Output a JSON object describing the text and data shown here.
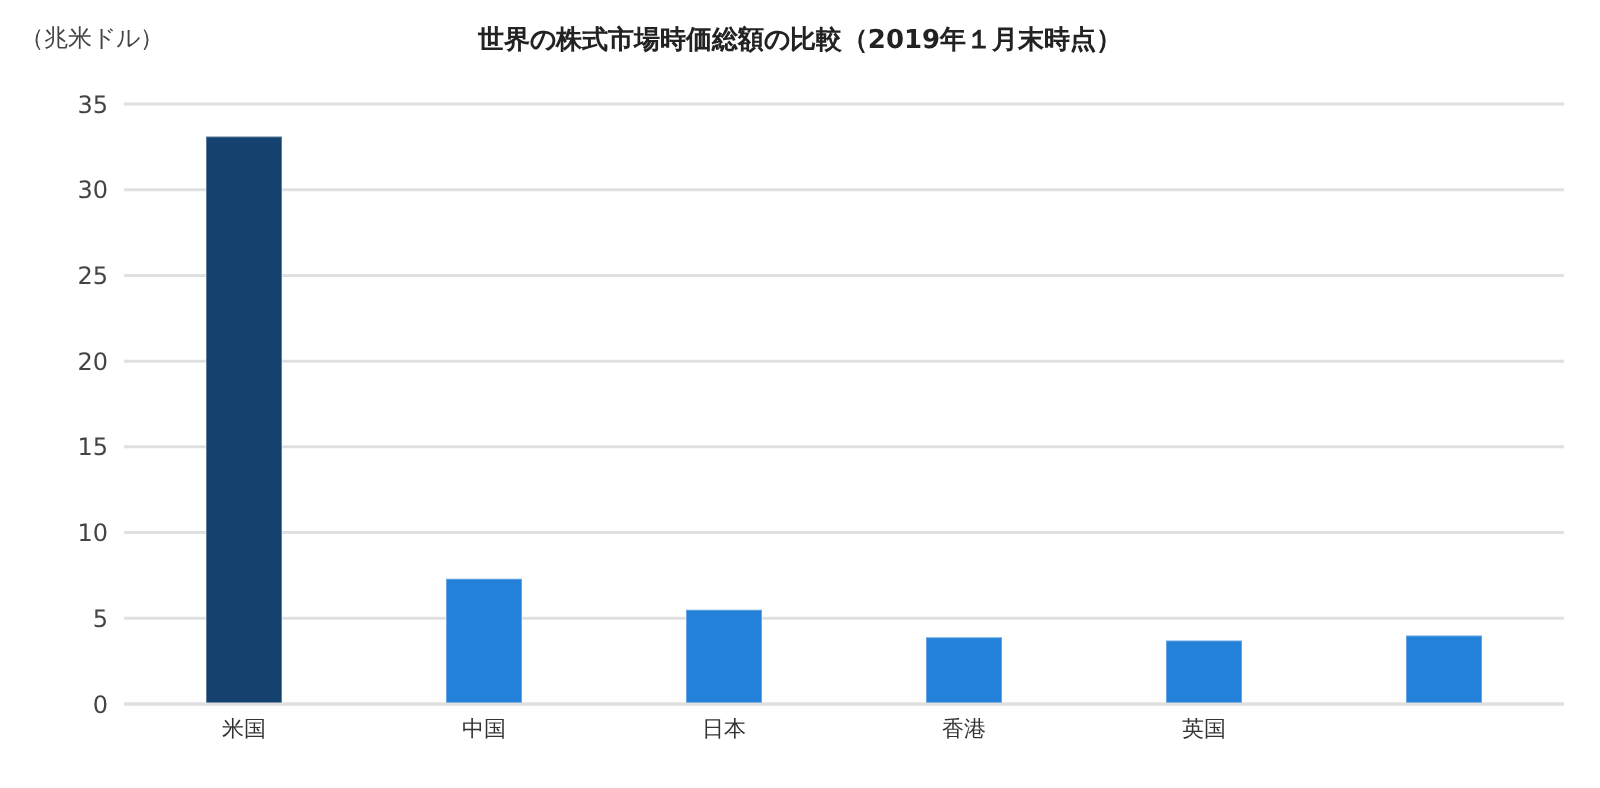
{
  "chart_data": {
    "type": "bar",
    "title": "世界の株式市場時価総額の比較（2019年１月末時点）",
    "ylabel": "（兆米ドル）",
    "categories": [
      "米国",
      "中国",
      "日本",
      "香港",
      "英国",
      null
    ],
    "values": [
      33.1,
      7.3,
      5.5,
      3.9,
      3.7,
      4.0
    ],
    "colors": [
      "#15416f",
      "#2381d9",
      "#2381d9",
      "#2381d9",
      "#2381d9",
      "#2381d9"
    ],
    "ylim": [
      0,
      35
    ],
    "yticks": [
      0,
      5,
      10,
      15,
      20,
      25,
      30,
      35
    ],
    "grid": "y",
    "legend": false
  }
}
